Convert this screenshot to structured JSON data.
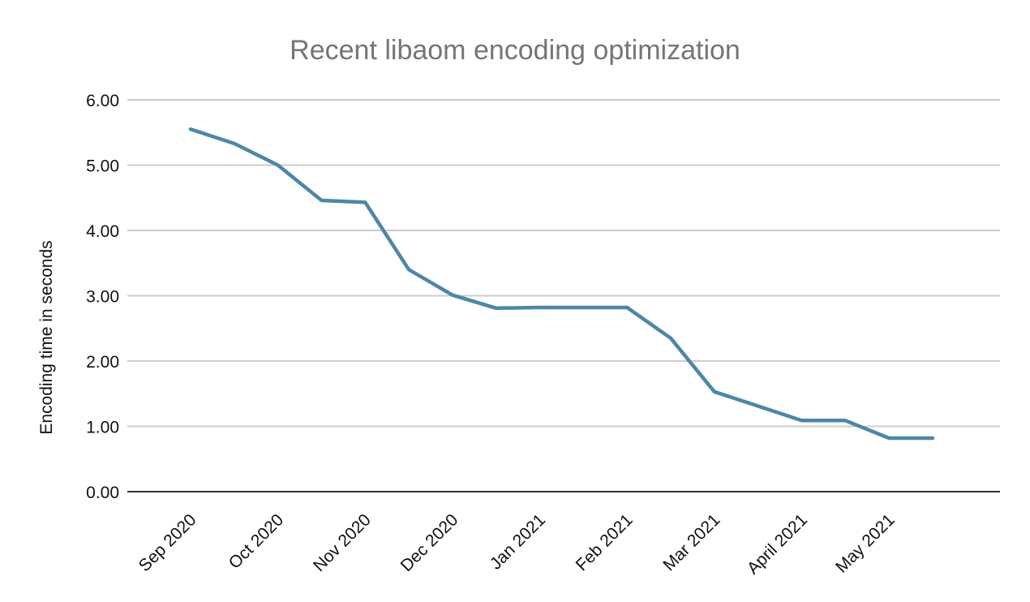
{
  "chart_data": {
    "type": "line",
    "title": "Recent libaom encoding optimization",
    "xlabel": "",
    "ylabel": "Encoding time in seconds",
    "ylim": [
      0,
      6
    ],
    "ytick_labels": [
      "6.00",
      "5.00",
      "4.00",
      "3.00",
      "2.00",
      "1.00",
      "0.00"
    ],
    "categories": [
      "Sep 2020",
      "Oct 2020",
      "Nov 2020",
      "Dec 2020",
      "Jan 2021",
      "Feb 2021",
      "Mar 2021",
      "April 2021",
      "May 2021"
    ],
    "points_per_category": 2,
    "series": [
      {
        "values": [
          5.55,
          5.33,
          5.0,
          4.46,
          4.43,
          3.4,
          3.01,
          2.81,
          2.82,
          2.82,
          2.82,
          2.35,
          1.53,
          1.31,
          1.09,
          1.09,
          0.82,
          0.82
        ]
      }
    ],
    "grid": true,
    "legend_position": "none",
    "colors": {
      "line": "#4e86a8",
      "grid": "#cccccc",
      "axis": "#333333",
      "title_text": "#757575",
      "tick_text": "#111111"
    }
  }
}
